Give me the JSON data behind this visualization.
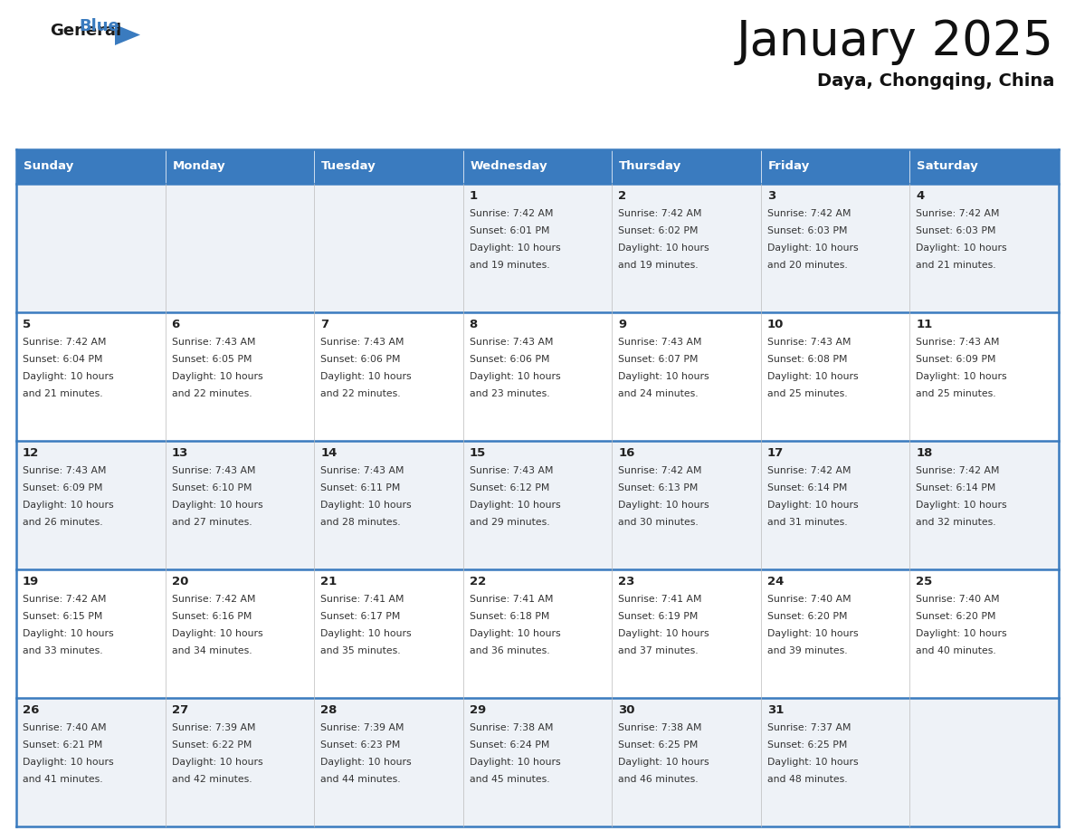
{
  "title": "January 2025",
  "subtitle": "Daya, Chongqing, China",
  "days_of_week": [
    "Sunday",
    "Monday",
    "Tuesday",
    "Wednesday",
    "Thursday",
    "Friday",
    "Saturday"
  ],
  "header_bg": "#3a7bbf",
  "header_text": "#ffffff",
  "border_color": "#3a7bbf",
  "day_number_color": "#222222",
  "cell_text_color": "#333333",
  "row_bg_odd": "#eef2f7",
  "row_bg_even": "#ffffff",
  "weeks": [
    [
      {
        "day": null
      },
      {
        "day": null
      },
      {
        "day": null
      },
      {
        "day": 1,
        "sunrise": "7:42 AM",
        "sunset": "6:01 PM",
        "daylight": "10 hours",
        "daylight2": "and 19 minutes."
      },
      {
        "day": 2,
        "sunrise": "7:42 AM",
        "sunset": "6:02 PM",
        "daylight": "10 hours",
        "daylight2": "and 19 minutes."
      },
      {
        "day": 3,
        "sunrise": "7:42 AM",
        "sunset": "6:03 PM",
        "daylight": "10 hours",
        "daylight2": "and 20 minutes."
      },
      {
        "day": 4,
        "sunrise": "7:42 AM",
        "sunset": "6:03 PM",
        "daylight": "10 hours",
        "daylight2": "and 21 minutes."
      }
    ],
    [
      {
        "day": 5,
        "sunrise": "7:42 AM",
        "sunset": "6:04 PM",
        "daylight": "10 hours",
        "daylight2": "and 21 minutes."
      },
      {
        "day": 6,
        "sunrise": "7:43 AM",
        "sunset": "6:05 PM",
        "daylight": "10 hours",
        "daylight2": "and 22 minutes."
      },
      {
        "day": 7,
        "sunrise": "7:43 AM",
        "sunset": "6:06 PM",
        "daylight": "10 hours",
        "daylight2": "and 22 minutes."
      },
      {
        "day": 8,
        "sunrise": "7:43 AM",
        "sunset": "6:06 PM",
        "daylight": "10 hours",
        "daylight2": "and 23 minutes."
      },
      {
        "day": 9,
        "sunrise": "7:43 AM",
        "sunset": "6:07 PM",
        "daylight": "10 hours",
        "daylight2": "and 24 minutes."
      },
      {
        "day": 10,
        "sunrise": "7:43 AM",
        "sunset": "6:08 PM",
        "daylight": "10 hours",
        "daylight2": "and 25 minutes."
      },
      {
        "day": 11,
        "sunrise": "7:43 AM",
        "sunset": "6:09 PM",
        "daylight": "10 hours",
        "daylight2": "and 25 minutes."
      }
    ],
    [
      {
        "day": 12,
        "sunrise": "7:43 AM",
        "sunset": "6:09 PM",
        "daylight": "10 hours",
        "daylight2": "and 26 minutes."
      },
      {
        "day": 13,
        "sunrise": "7:43 AM",
        "sunset": "6:10 PM",
        "daylight": "10 hours",
        "daylight2": "and 27 minutes."
      },
      {
        "day": 14,
        "sunrise": "7:43 AM",
        "sunset": "6:11 PM",
        "daylight": "10 hours",
        "daylight2": "and 28 minutes."
      },
      {
        "day": 15,
        "sunrise": "7:43 AM",
        "sunset": "6:12 PM",
        "daylight": "10 hours",
        "daylight2": "and 29 minutes."
      },
      {
        "day": 16,
        "sunrise": "7:42 AM",
        "sunset": "6:13 PM",
        "daylight": "10 hours",
        "daylight2": "and 30 minutes."
      },
      {
        "day": 17,
        "sunrise": "7:42 AM",
        "sunset": "6:14 PM",
        "daylight": "10 hours",
        "daylight2": "and 31 minutes."
      },
      {
        "day": 18,
        "sunrise": "7:42 AM",
        "sunset": "6:14 PM",
        "daylight": "10 hours",
        "daylight2": "and 32 minutes."
      }
    ],
    [
      {
        "day": 19,
        "sunrise": "7:42 AM",
        "sunset": "6:15 PM",
        "daylight": "10 hours",
        "daylight2": "and 33 minutes."
      },
      {
        "day": 20,
        "sunrise": "7:42 AM",
        "sunset": "6:16 PM",
        "daylight": "10 hours",
        "daylight2": "and 34 minutes."
      },
      {
        "day": 21,
        "sunrise": "7:41 AM",
        "sunset": "6:17 PM",
        "daylight": "10 hours",
        "daylight2": "and 35 minutes."
      },
      {
        "day": 22,
        "sunrise": "7:41 AM",
        "sunset": "6:18 PM",
        "daylight": "10 hours",
        "daylight2": "and 36 minutes."
      },
      {
        "day": 23,
        "sunrise": "7:41 AM",
        "sunset": "6:19 PM",
        "daylight": "10 hours",
        "daylight2": "and 37 minutes."
      },
      {
        "day": 24,
        "sunrise": "7:40 AM",
        "sunset": "6:20 PM",
        "daylight": "10 hours",
        "daylight2": "and 39 minutes."
      },
      {
        "day": 25,
        "sunrise": "7:40 AM",
        "sunset": "6:20 PM",
        "daylight": "10 hours",
        "daylight2": "and 40 minutes."
      }
    ],
    [
      {
        "day": 26,
        "sunrise": "7:40 AM",
        "sunset": "6:21 PM",
        "daylight": "10 hours",
        "daylight2": "and 41 minutes."
      },
      {
        "day": 27,
        "sunrise": "7:39 AM",
        "sunset": "6:22 PM",
        "daylight": "10 hours",
        "daylight2": "and 42 minutes."
      },
      {
        "day": 28,
        "sunrise": "7:39 AM",
        "sunset": "6:23 PM",
        "daylight": "10 hours",
        "daylight2": "and 44 minutes."
      },
      {
        "day": 29,
        "sunrise": "7:38 AM",
        "sunset": "6:24 PM",
        "daylight": "10 hours",
        "daylight2": "and 45 minutes."
      },
      {
        "day": 30,
        "sunrise": "7:38 AM",
        "sunset": "6:25 PM",
        "daylight": "10 hours",
        "daylight2": "and 46 minutes."
      },
      {
        "day": 31,
        "sunrise": "7:37 AM",
        "sunset": "6:25 PM",
        "daylight": "10 hours",
        "daylight2": "and 48 minutes."
      },
      {
        "day": null
      }
    ]
  ]
}
